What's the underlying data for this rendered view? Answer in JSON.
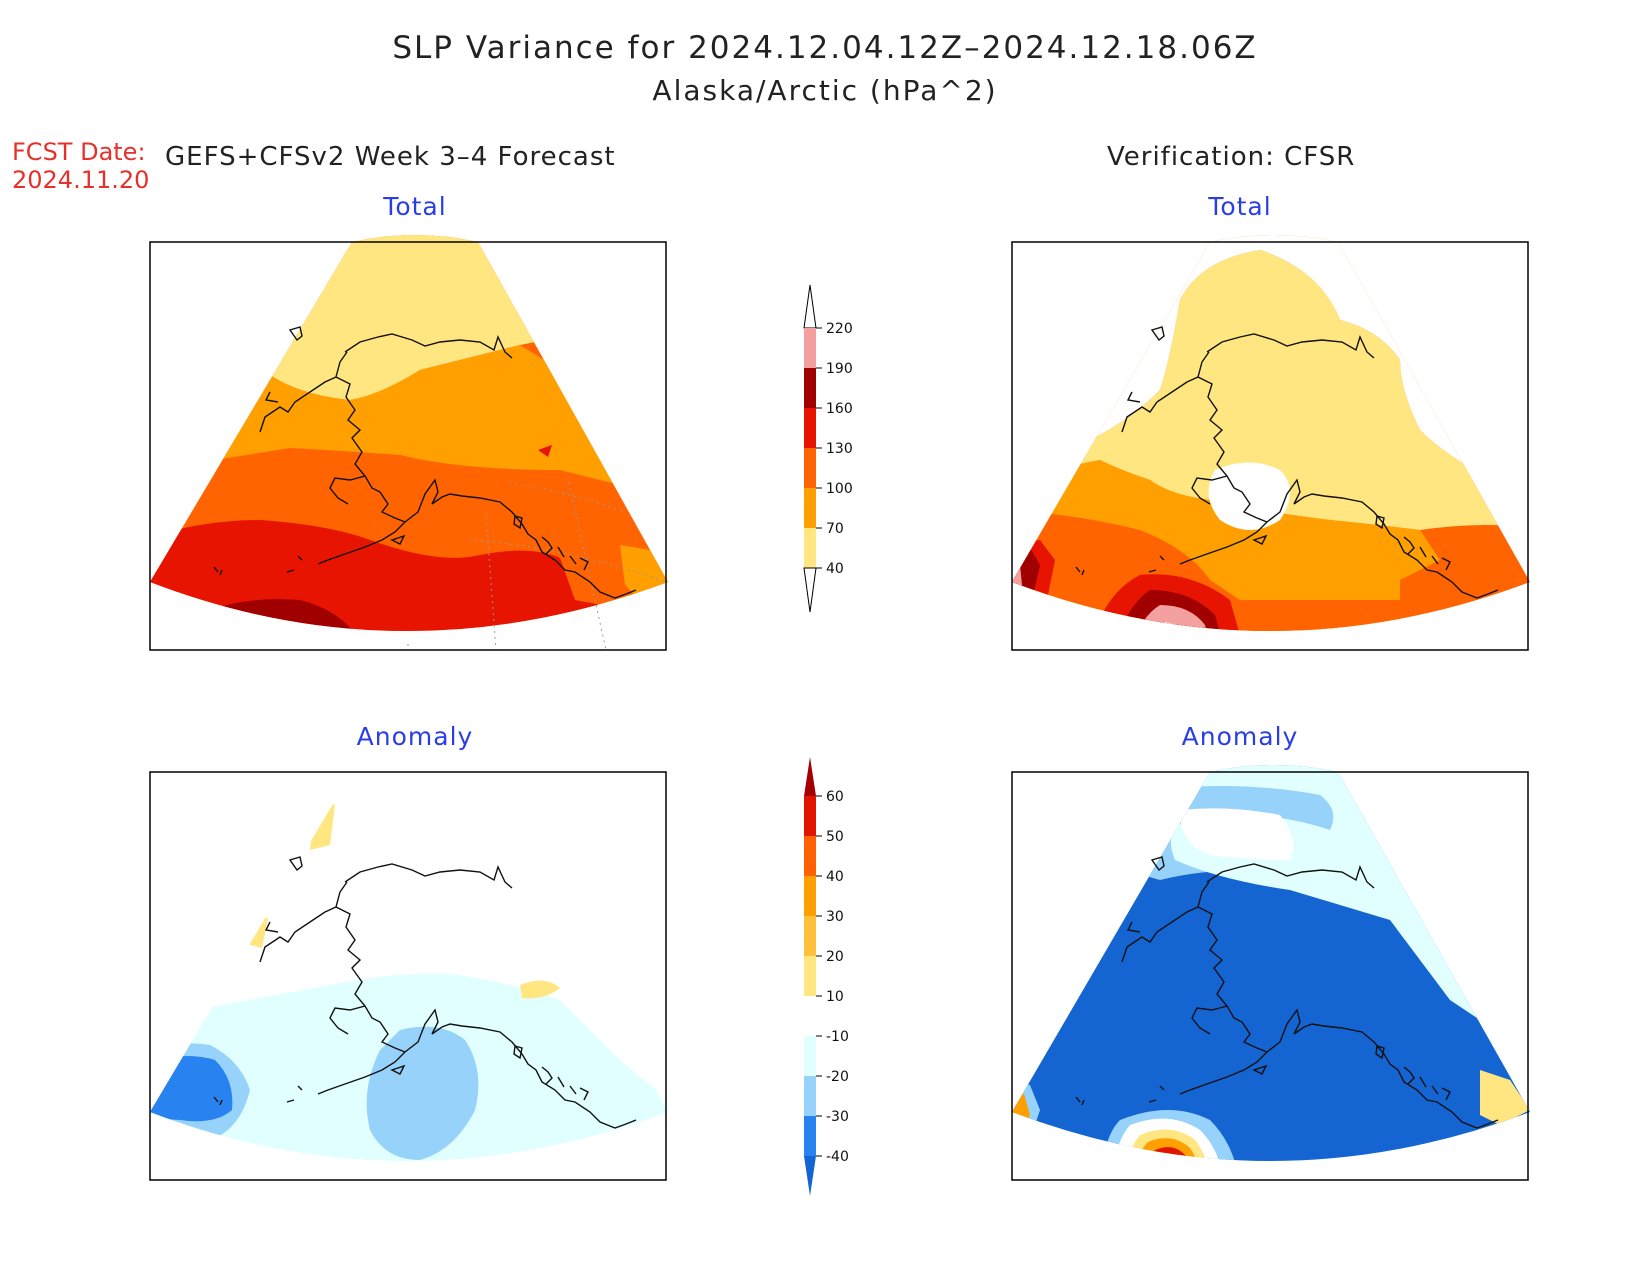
{
  "title": {
    "line1": "SLP Variance for 2024.12.04.12Z–2024.12.18.06Z",
    "line2": "Alaska/Arctic (hPa^2)"
  },
  "forecast": {
    "date_label": "FCST Date:",
    "date_value": "2024.11.20",
    "model_label": "GEFS+CFSv2 Week 3–4 Forecast"
  },
  "verification": {
    "label": "Verification: CFSR"
  },
  "panels": {
    "fcst_total": {
      "subtitle": "Total"
    },
    "obs_total": {
      "subtitle": "Total"
    },
    "fcst_anomaly": {
      "subtitle": "Anomaly"
    },
    "obs_anomaly": {
      "subtitle": "Anomaly"
    }
  },
  "colorbars": {
    "total": {
      "ticks": [
        "40",
        "70",
        "100",
        "130",
        "160",
        "190",
        "220"
      ],
      "colors": [
        "#ffe680",
        "#ffa000",
        "#ff6400",
        "#e61400",
        "#a00000",
        "#f4a0a0",
        "#ffe0e0"
      ]
    },
    "anomaly": {
      "ticks": [
        "-40",
        "-30",
        "-20",
        "-10",
        "10",
        "20",
        "30",
        "40",
        "50",
        "60"
      ],
      "colors": [
        "#1464d2",
        "#2882f0",
        "#96d2fa",
        "#e1ffff",
        "#ffffff",
        "#ffe680",
        "#ffc03c",
        "#ffa000",
        "#ff6000",
        "#e11400",
        "#a50000"
      ]
    }
  }
}
